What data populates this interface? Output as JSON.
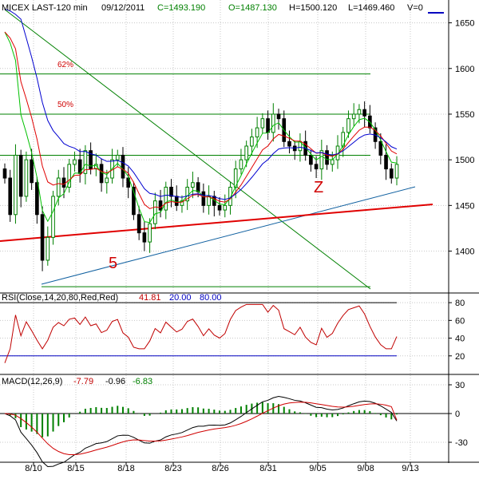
{
  "header": {
    "symbol": "MICEX LAST-120 min",
    "date": "09/12/2011",
    "close": "C=1493.190",
    "open": "O=1487.130",
    "high": "H=1500.120",
    "low": "L=1469.460",
    "volume": "V=0"
  },
  "colors": {
    "background": "#ffffff",
    "grid": "#c8c8c8",
    "up_candle": "#008000",
    "down_candle": "#000000",
    "ma_fast": "#00c000",
    "ma_mid": "#e00000",
    "ma_slow": "#0000d0",
    "trend_red": "#e00000",
    "fib_green": "#008000",
    "rsi_line": "#c00000",
    "rsi_upper": "#000000",
    "rsi_lower": "#0000c0",
    "macd_line": "#000000",
    "signal_line": "#d00000",
    "histogram": "#008000",
    "label_red": "#d00000"
  },
  "chart_data": [
    {
      "type": "candlestick",
      "title": "MICEX LAST-120 min",
      "ylim": [
        1355,
        1675
      ],
      "yticks": [
        1400,
        1450,
        1500,
        1550,
        1600,
        1650
      ],
      "xticks": [
        "8/10",
        "8/15",
        "8/18",
        "8/23",
        "8/26",
        "8/31",
        "9/05",
        "9/08",
        "9/13"
      ],
      "annotations": {
        "fib_62": "62%",
        "fib_50": "50%",
        "wave_5": "5",
        "wave_z": "Z"
      },
      "fib_levels": {
        "62%": 1594,
        "50%": 1550,
        "base": 1505,
        "low": 1361
      },
      "overlays": [
        "moving averages (green, red, blue)",
        "trend lines"
      ],
      "closes": [
        1480,
        1440,
        1505,
        1460,
        1500,
        1475,
        1440,
        1390,
        1415,
        1460,
        1480,
        1470,
        1495,
        1500,
        1485,
        1510,
        1490,
        1495,
        1475,
        1480,
        1500,
        1505,
        1480,
        1470,
        1440,
        1420,
        1410,
        1430,
        1455,
        1445,
        1470,
        1460,
        1450,
        1455,
        1470,
        1475,
        1465,
        1450,
        1460,
        1450,
        1445,
        1450,
        1470,
        1490,
        1500,
        1515,
        1525,
        1535,
        1545,
        1530,
        1550,
        1545,
        1520,
        1515,
        1510,
        1520,
        1505,
        1495,
        1490,
        1510,
        1495,
        1500,
        1515,
        1530,
        1545,
        1550,
        1555,
        1548,
        1535,
        1520,
        1505,
        1490,
        1480,
        1495
      ]
    },
    {
      "type": "line",
      "title": "RSI(Close,14,20,80,Red,Red)",
      "label_main": "RSI(Close,14,20,80,Red,Red)",
      "value_rsi": "41.81",
      "value_lower": "20.00",
      "value_upper": "80.00",
      "ylim": [
        0,
        90
      ],
      "yticks": [
        20,
        40,
        60,
        80
      ],
      "levels": [
        20,
        80
      ],
      "last_value": 41.81
    },
    {
      "type": "line",
      "title": "MACD(12,26,9)",
      "label_main": "MACD(12,26,9)",
      "value_macd": "-7.79",
      "value_hist": "-0.96",
      "value_signal": "-6.83",
      "ylim": [
        -50,
        40
      ],
      "yticks": [
        30,
        0,
        -30
      ],
      "last_values": {
        "macd": -7.79,
        "histogram": -0.96,
        "signal": -6.83
      }
    }
  ]
}
